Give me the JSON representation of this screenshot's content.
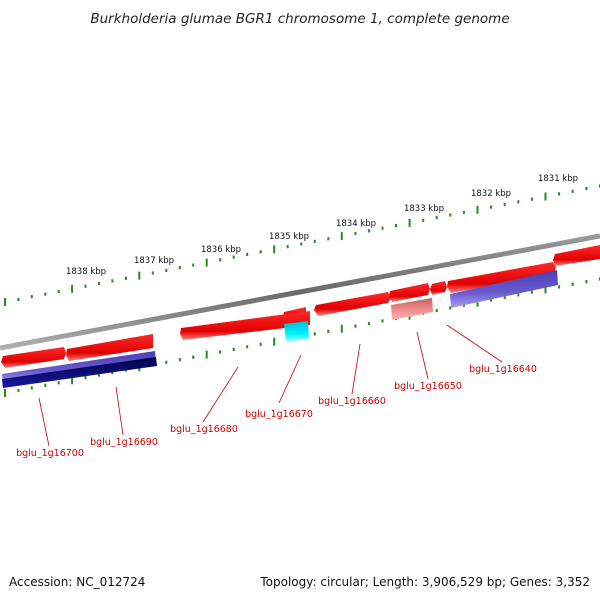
{
  "title": "Burkholderia glumae BGR1 chromosome 1, complete genome",
  "footer": {
    "accession": "Accession: NC_012724",
    "topology": "Topology: circular; Length: 3,906,529 bp; Genes: 3,352"
  },
  "colors": {
    "forward_cds": "#ee0000",
    "reverse_cds": "#ee0000",
    "forward_gene_light": "#e88080",
    "feature_cyan": "#00e5ee",
    "blue_feature": "#6a5acd",
    "navy_feature": "#000080",
    "backbone": "#808080",
    "tick": "#228b22",
    "label": "#cc0000"
  },
  "scale_ticks": [
    "1831 kbp",
    "1832 kbp",
    "1833 kbp",
    "1834 kbp",
    "1835 kbp",
    "1836 kbp",
    "1837 kbp",
    "1838 kbp"
  ],
  "genes": [
    "bglu_1g16640",
    "bglu_1g16650",
    "bglu_1g16660",
    "bglu_1g16670",
    "bglu_1g16680",
    "bglu_1g16690",
    "bglu_1g16700"
  ]
}
